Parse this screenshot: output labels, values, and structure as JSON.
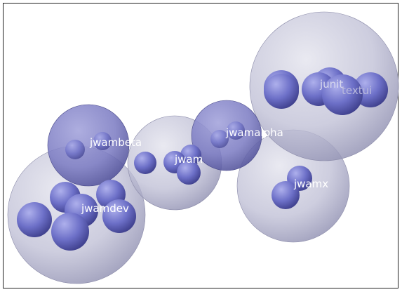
{
  "diagram": {
    "packages": [
      {
        "id": "jwambeta",
        "label": "jwambeta"
      },
      {
        "id": "jwam",
        "label": "jwam"
      },
      {
        "id": "jwamalpha",
        "label": "jwamalpha"
      },
      {
        "id": "jwamdev",
        "label": "jwamdev"
      },
      {
        "id": "jwamx",
        "label": "jwamx"
      },
      {
        "id": "junit",
        "label": "junit"
      },
      {
        "id": "textui",
        "label": "textui"
      }
    ],
    "colors": {
      "outer_sphere": "#b8b8d4",
      "inner_sphere": "#6b6bc4",
      "background": "#ffffff",
      "label": "#ffffff"
    }
  }
}
